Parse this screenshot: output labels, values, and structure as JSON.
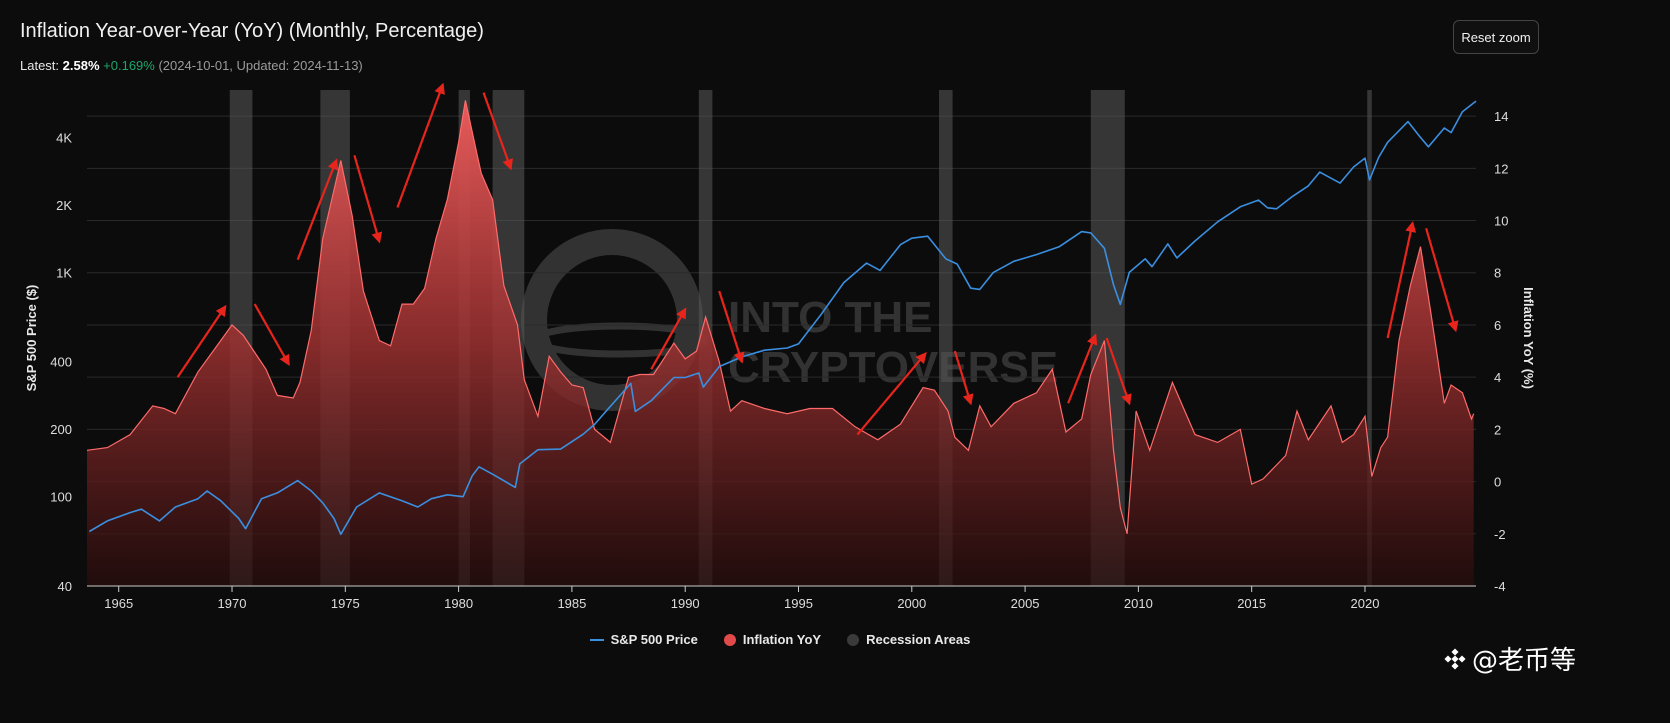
{
  "header": {
    "title": "Inflation Year-over-Year (YoY) (Monthly, Percentage)",
    "latest_label": "Latest:",
    "latest_value": "2.58%",
    "latest_change": "+0.169%",
    "latest_meta": "(2024-10-01, Updated: 2024-11-13)"
  },
  "toolbar": {
    "reset_zoom_label": "Reset zoom"
  },
  "watermark": {
    "text": "@老币等"
  },
  "background_logo": {
    "line1": "INTO THE",
    "line2": "CRYPTOVERSE"
  },
  "colors": {
    "sp500_line": "#3b8fe0",
    "inflation_fill": "#e04a4a",
    "inflation_line": "#ff6a6a",
    "recession": "#5a5a5a",
    "arrow": "#e8251c",
    "positive_change": "#21a36b"
  },
  "chart_data": {
    "type": "line",
    "x_axis": {
      "range": [
        1963.6,
        2024.9
      ],
      "ticks": [
        1965,
        1970,
        1975,
        1980,
        1985,
        1990,
        1995,
        2000,
        2005,
        2010,
        2015,
        2020
      ]
    },
    "y_left": {
      "label": "S&P 500 Price ($)",
      "scale": "log",
      "range": [
        40,
        6500
      ],
      "ticks": [
        40,
        100,
        200,
        400,
        1000,
        2000,
        4000
      ],
      "tick_labels": [
        "40",
        "100",
        "200",
        "400",
        "1K",
        "2K",
        "4K"
      ]
    },
    "y_right": {
      "label": "Inflation YoY (%)",
      "range": [
        -4,
        15
      ],
      "ticks": [
        -4,
        -2,
        0,
        2,
        4,
        6,
        8,
        10,
        12,
        14
      ],
      "tick_labels": [
        "-4",
        "-2",
        "0",
        "2",
        "4",
        "6",
        "8",
        "10",
        "12",
        "14"
      ]
    },
    "grid": true,
    "legend_position": "bottom-center",
    "series": [
      {
        "name": "S&P 500 Price",
        "axis": "left",
        "points": [
          [
            1963.7,
            70
          ],
          [
            1964.5,
            78
          ],
          [
            1965.5,
            85
          ],
          [
            1966.0,
            88
          ],
          [
            1966.8,
            78
          ],
          [
            1967.5,
            90
          ],
          [
            1968.5,
            98
          ],
          [
            1968.9,
            106
          ],
          [
            1969.5,
            96
          ],
          [
            1970.3,
            80
          ],
          [
            1970.6,
            72
          ],
          [
            1971.3,
            98
          ],
          [
            1972.0,
            104
          ],
          [
            1972.9,
            118
          ],
          [
            1973.5,
            106
          ],
          [
            1974.0,
            94
          ],
          [
            1974.5,
            80
          ],
          [
            1974.8,
            68
          ],
          [
            1975.5,
            90
          ],
          [
            1976.5,
            104
          ],
          [
            1977.5,
            96
          ],
          [
            1978.2,
            90
          ],
          [
            1978.8,
            98
          ],
          [
            1979.5,
            102
          ],
          [
            1980.2,
            100
          ],
          [
            1980.6,
            124
          ],
          [
            1980.9,
            136
          ],
          [
            1981.5,
            126
          ],
          [
            1982.5,
            110
          ],
          [
            1982.7,
            140
          ],
          [
            1983.5,
            162
          ],
          [
            1984.5,
            163
          ],
          [
            1985.5,
            190
          ],
          [
            1986.0,
            210
          ],
          [
            1986.5,
            240
          ],
          [
            1987.6,
            320
          ],
          [
            1987.8,
            240
          ],
          [
            1988.5,
            268
          ],
          [
            1989.5,
            340
          ],
          [
            1990.0,
            340
          ],
          [
            1990.6,
            356
          ],
          [
            1990.8,
            308
          ],
          [
            1991.5,
            380
          ],
          [
            1992.5,
            420
          ],
          [
            1993.5,
            450
          ],
          [
            1994.5,
            460
          ],
          [
            1995.0,
            480
          ],
          [
            1996.0,
            650
          ],
          [
            1997.0,
            900
          ],
          [
            1998.0,
            1100
          ],
          [
            1998.6,
            1020
          ],
          [
            1999.5,
            1330
          ],
          [
            2000.0,
            1420
          ],
          [
            2000.7,
            1450
          ],
          [
            2001.5,
            1150
          ],
          [
            2002.0,
            1090
          ],
          [
            2002.6,
            850
          ],
          [
            2003.0,
            840
          ],
          [
            2003.6,
            1000
          ],
          [
            2004.5,
            1120
          ],
          [
            2005.5,
            1200
          ],
          [
            2006.5,
            1300
          ],
          [
            2007.5,
            1520
          ],
          [
            2007.9,
            1500
          ],
          [
            2008.5,
            1280
          ],
          [
            2008.9,
            880
          ],
          [
            2009.2,
            720
          ],
          [
            2009.6,
            1000
          ],
          [
            2010.3,
            1150
          ],
          [
            2010.6,
            1060
          ],
          [
            2011.3,
            1340
          ],
          [
            2011.7,
            1160
          ],
          [
            2012.5,
            1380
          ],
          [
            2013.5,
            1680
          ],
          [
            2014.5,
            1960
          ],
          [
            2015.3,
            2100
          ],
          [
            2015.7,
            1940
          ],
          [
            2016.1,
            1920
          ],
          [
            2016.8,
            2180
          ],
          [
            2017.5,
            2430
          ],
          [
            2018.0,
            2800
          ],
          [
            2018.9,
            2500
          ],
          [
            2019.5,
            2950
          ],
          [
            2020.0,
            3230
          ],
          [
            2020.2,
            2580
          ],
          [
            2020.6,
            3250
          ],
          [
            2021.0,
            3800
          ],
          [
            2021.9,
            4700
          ],
          [
            2022.4,
            4050
          ],
          [
            2022.8,
            3630
          ],
          [
            2023.5,
            4400
          ],
          [
            2023.8,
            4200
          ],
          [
            2024.3,
            5200
          ],
          [
            2024.9,
            5800
          ]
        ]
      },
      {
        "name": "Inflation YoY",
        "axis": "right",
        "points": [
          [
            1963.6,
            1.2
          ],
          [
            1964.5,
            1.3
          ],
          [
            1965.5,
            1.8
          ],
          [
            1966.5,
            2.9
          ],
          [
            1967.0,
            2.8
          ],
          [
            1967.5,
            2.6
          ],
          [
            1968.5,
            4.2
          ],
          [
            1969.5,
            5.4
          ],
          [
            1970.0,
            6.0
          ],
          [
            1970.5,
            5.6
          ],
          [
            1971.5,
            4.3
          ],
          [
            1972.0,
            3.3
          ],
          [
            1972.7,
            3.2
          ],
          [
            1973.0,
            3.8
          ],
          [
            1973.5,
            5.8
          ],
          [
            1974.0,
            9.3
          ],
          [
            1974.8,
            12.3
          ],
          [
            1975.3,
            10.2
          ],
          [
            1975.8,
            7.3
          ],
          [
            1976.5,
            5.4
          ],
          [
            1977.0,
            5.2
          ],
          [
            1977.5,
            6.8
          ],
          [
            1978.0,
            6.8
          ],
          [
            1978.5,
            7.4
          ],
          [
            1979.0,
            9.3
          ],
          [
            1979.5,
            10.8
          ],
          [
            1980.0,
            13.0
          ],
          [
            1980.3,
            14.6
          ],
          [
            1980.8,
            12.6
          ],
          [
            1981.0,
            11.8
          ],
          [
            1981.5,
            10.8
          ],
          [
            1982.0,
            7.5
          ],
          [
            1982.6,
            6.0
          ],
          [
            1982.9,
            3.9
          ],
          [
            1983.5,
            2.5
          ],
          [
            1984.0,
            4.8
          ],
          [
            1984.5,
            4.2
          ],
          [
            1985.0,
            3.7
          ],
          [
            1985.5,
            3.6
          ],
          [
            1986.0,
            2.0
          ],
          [
            1986.7,
            1.5
          ],
          [
            1987.5,
            4.0
          ],
          [
            1988.0,
            4.1
          ],
          [
            1988.6,
            4.1
          ],
          [
            1989.5,
            5.3
          ],
          [
            1990.0,
            4.7
          ],
          [
            1990.5,
            5.0
          ],
          [
            1990.9,
            6.3
          ],
          [
            1991.5,
            4.6
          ],
          [
            1992.0,
            2.7
          ],
          [
            1992.5,
            3.1
          ],
          [
            1993.5,
            2.8
          ],
          [
            1994.5,
            2.6
          ],
          [
            1995.5,
            2.8
          ],
          [
            1996.5,
            2.8
          ],
          [
            1997.5,
            2.1
          ],
          [
            1998.5,
            1.6
          ],
          [
            1999.5,
            2.2
          ],
          [
            2000.5,
            3.6
          ],
          [
            2001.0,
            3.5
          ],
          [
            2001.6,
            2.7
          ],
          [
            2001.9,
            1.7
          ],
          [
            2002.5,
            1.2
          ],
          [
            2003.0,
            2.9
          ],
          [
            2003.5,
            2.1
          ],
          [
            2004.5,
            3.0
          ],
          [
            2005.5,
            3.4
          ],
          [
            2006.2,
            4.3
          ],
          [
            2006.8,
            1.9
          ],
          [
            2007.5,
            2.4
          ],
          [
            2007.9,
            4.1
          ],
          [
            2008.5,
            5.4
          ],
          [
            2008.9,
            1.2
          ],
          [
            2009.2,
            -1.0
          ],
          [
            2009.5,
            -2.0
          ],
          [
            2009.9,
            2.7
          ],
          [
            2010.5,
            1.2
          ],
          [
            2011.5,
            3.8
          ],
          [
            2012.5,
            1.8
          ],
          [
            2013.5,
            1.5
          ],
          [
            2014.5,
            2.0
          ],
          [
            2015.0,
            -0.1
          ],
          [
            2015.5,
            0.1
          ],
          [
            2016.5,
            1.0
          ],
          [
            2017.0,
            2.7
          ],
          [
            2017.5,
            1.6
          ],
          [
            2018.5,
            2.9
          ],
          [
            2019.0,
            1.5
          ],
          [
            2019.5,
            1.8
          ],
          [
            2020.0,
            2.5
          ],
          [
            2020.3,
            0.2
          ],
          [
            2020.7,
            1.3
          ],
          [
            2021.0,
            1.7
          ],
          [
            2021.5,
            5.4
          ],
          [
            2022.0,
            7.5
          ],
          [
            2022.45,
            9.0
          ],
          [
            2022.9,
            6.5
          ],
          [
            2023.5,
            3.0
          ],
          [
            2023.8,
            3.7
          ],
          [
            2024.3,
            3.4
          ],
          [
            2024.7,
            2.4
          ],
          [
            2024.8,
            2.6
          ]
        ]
      }
    ],
    "recession_areas": [
      [
        1969.9,
        1970.9
      ],
      [
        1973.9,
        1975.2
      ],
      [
        1980.0,
        1980.5
      ],
      [
        1981.5,
        1982.9
      ],
      [
        1990.6,
        1991.2
      ],
      [
        2001.2,
        2001.8
      ],
      [
        2007.9,
        2009.4
      ],
      [
        2020.1,
        2020.3
      ]
    ],
    "legend": [
      "S&P 500 Price",
      "Inflation YoY",
      "Recession Areas"
    ],
    "annotations": {
      "type": "arrows",
      "arrows": [
        [
          [
            1967.6,
            4.0
          ],
          [
            1969.7,
            6.7
          ]
        ],
        [
          [
            1971.0,
            6.8
          ],
          [
            1972.5,
            4.5
          ]
        ],
        [
          [
            1972.9,
            8.5
          ],
          [
            1974.6,
            12.3
          ]
        ],
        [
          [
            1975.4,
            12.5
          ],
          [
            1976.5,
            9.2
          ]
        ],
        [
          [
            1977.3,
            10.5
          ],
          [
            1979.3,
            15.2
          ]
        ],
        [
          [
            1981.1,
            14.9
          ],
          [
            1982.3,
            12.0
          ]
        ],
        [
          [
            1988.5,
            4.3
          ],
          [
            1990.0,
            6.6
          ]
        ],
        [
          [
            1991.5,
            7.3
          ],
          [
            1992.5,
            4.6
          ]
        ],
        [
          [
            1997.6,
            1.8
          ],
          [
            2000.6,
            4.9
          ]
        ],
        [
          [
            2001.9,
            5.0
          ],
          [
            2002.6,
            3.0
          ]
        ],
        [
          [
            2006.9,
            3.0
          ],
          [
            2008.1,
            5.6
          ]
        ],
        [
          [
            2008.6,
            5.5
          ],
          [
            2009.6,
            3.0
          ]
        ],
        [
          [
            2021.0,
            5.5
          ],
          [
            2022.1,
            9.9
          ]
        ],
        [
          [
            2022.7,
            9.7
          ],
          [
            2024.0,
            5.8
          ]
        ]
      ]
    }
  }
}
